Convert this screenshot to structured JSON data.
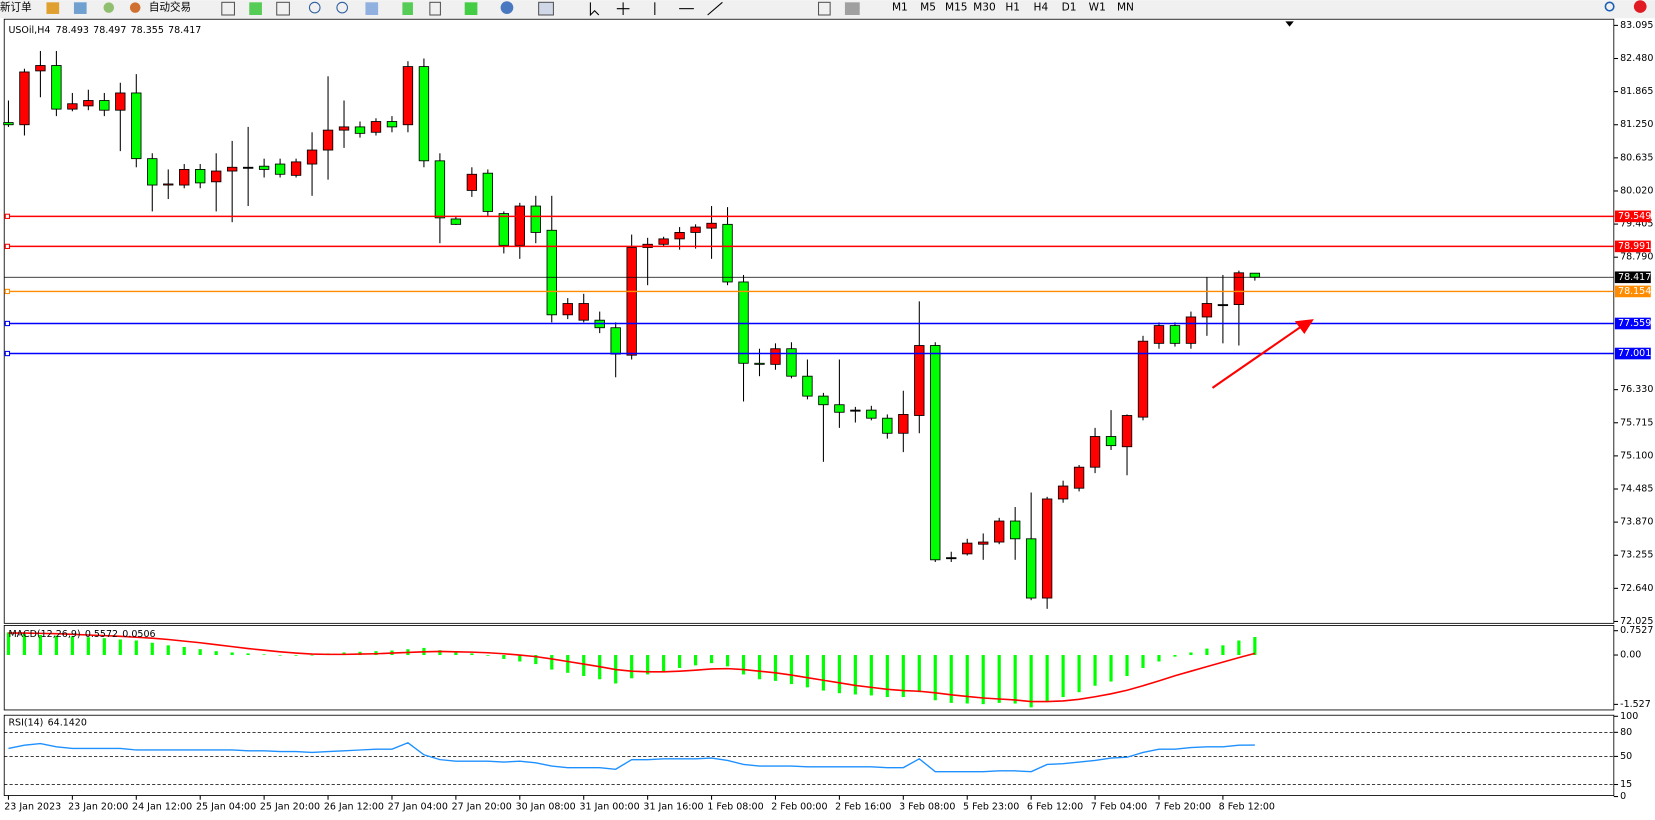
{
  "toolbar": {
    "new_order": "新订单",
    "auto_trading": "自动交易",
    "timeframes": [
      "M1",
      "M5",
      "M15",
      "M30",
      "H1",
      "H4",
      "D1",
      "W1",
      "MN"
    ]
  },
  "chart_data": [
    {
      "type": "candlestick",
      "title": "USOil,H4",
      "categories": [
        "23 Jan 2023",
        null,
        null,
        null,
        "23 Jan 20:00",
        null,
        null,
        null,
        "24 Jan 12:00",
        null,
        null,
        null,
        "25 Jan 04:00",
        null,
        null,
        null,
        "25 Jan 20:00",
        null,
        null,
        null,
        "26 Jan 12:00",
        null,
        null,
        null,
        "27 Jan 04:00",
        null,
        null,
        null,
        "27 Jan 20:00",
        null,
        null,
        null,
        "30 Jan 08:00",
        null,
        null,
        null,
        "31 Jan 00:00",
        null,
        null,
        null,
        "31 Jan 16:00",
        null,
        null,
        null,
        "1 Feb 08:00",
        null,
        null,
        null,
        "2 Feb 00:00",
        null,
        null,
        null,
        "2 Feb 16:00",
        null,
        null,
        null,
        "3 Feb 08:00",
        null,
        null,
        null,
        "5 Feb 23:00",
        null,
        null,
        null,
        "6 Feb 12:00",
        null,
        null,
        null,
        "7 Feb 04:00",
        null,
        null,
        null,
        "7 Feb 20:00",
        null,
        null,
        null,
        "8 Feb 12:00",
        null,
        null
      ],
      "open": [
        81.29,
        81.25,
        82.25,
        82.35,
        81.54,
        81.6,
        81.7,
        81.52,
        81.84,
        80.62,
        80.13,
        80.13,
        80.42,
        80.19,
        80.39,
        80.46,
        80.48,
        80.52,
        80.31,
        80.52,
        80.78,
        81.15,
        81.21,
        81.11,
        81.31,
        81.25,
        82.33,
        80.58,
        79.5,
        80.03,
        80.35,
        79.6,
        79.01,
        79.74,
        79.29,
        77.72,
        77.62,
        77.62,
        77.48,
        76.97,
        78.97,
        79.03,
        79.13,
        79.25,
        79.33,
        79.4,
        78.33,
        76.82,
        76.8,
        77.09,
        76.58,
        76.21,
        76.05,
        75.95,
        75.95,
        75.8,
        75.52,
        75.85,
        77.15,
        73.21,
        73.28,
        73.46,
        73.5,
        73.89,
        73.56,
        72.46,
        74.3,
        74.5,
        74.89,
        75.46,
        75.27,
        75.82,
        77.19,
        77.52,
        77.19,
        77.68,
        77.91,
        77.91,
        78.493
      ],
      "high": [
        81.7,
        82.29,
        82.62,
        82.62,
        81.84,
        81.9,
        81.84,
        82.03,
        82.19,
        80.72,
        80.42,
        80.52,
        80.52,
        80.72,
        80.95,
        81.21,
        80.62,
        80.62,
        80.62,
        81.11,
        82.15,
        81.7,
        81.31,
        81.37,
        81.41,
        82.43,
        82.48,
        80.72,
        79.54,
        80.46,
        80.42,
        79.64,
        79.8,
        79.93,
        79.93,
        78.03,
        78.11,
        77.78,
        77.58,
        79.21,
        79.15,
        79.17,
        79.35,
        79.4,
        79.74,
        79.72,
        78.46,
        77.09,
        77.19,
        77.21,
        76.89,
        76.27,
        76.89,
        76.01,
        76.03,
        75.87,
        76.31,
        77.97,
        77.21,
        73.32,
        73.56,
        73.66,
        73.95,
        74.15,
        74.42,
        74.34,
        74.64,
        74.93,
        75.62,
        75.95,
        75.87,
        77.33,
        77.58,
        77.58,
        77.78,
        78.42,
        78.46,
        78.54,
        78.497
      ],
      "low": [
        81.21,
        81.05,
        81.76,
        81.41,
        81.5,
        81.52,
        81.41,
        80.76,
        80.46,
        79.64,
        79.87,
        80.07,
        80.07,
        79.64,
        79.44,
        79.74,
        80.27,
        80.27,
        80.27,
        79.93,
        80.23,
        80.82,
        81.01,
        81.05,
        81.11,
        81.11,
        80.46,
        79.05,
        79.39,
        79.91,
        79.56,
        78.86,
        78.76,
        79.05,
        77.58,
        77.64,
        77.58,
        77.38,
        76.56,
        76.89,
        78.27,
        78.99,
        78.93,
        78.95,
        78.76,
        78.27,
        76.11,
        76.58,
        76.7,
        76.54,
        76.15,
        74.99,
        75.62,
        75.72,
        75.76,
        75.42,
        75.17,
        75.52,
        73.13,
        73.13,
        73.25,
        73.17,
        73.46,
        73.17,
        72.42,
        72.26,
        74.23,
        74.44,
        74.78,
        75.21,
        74.74,
        75.76,
        77.09,
        77.13,
        77.09,
        77.33,
        77.19,
        77.15,
        78.355
      ],
      "close": [
        81.25,
        82.23,
        82.35,
        81.54,
        81.64,
        81.7,
        81.52,
        81.84,
        80.62,
        80.13,
        80.15,
        80.42,
        80.17,
        80.39,
        80.46,
        80.46,
        80.42,
        80.33,
        80.56,
        80.78,
        81.15,
        81.21,
        81.09,
        81.31,
        81.21,
        82.33,
        80.58,
        79.52,
        79.4,
        80.33,
        79.64,
        79.01,
        79.74,
        79.25,
        77.72,
        77.93,
        77.93,
        77.48,
        76.99,
        78.97,
        79.03,
        79.13,
        79.25,
        79.35,
        79.42,
        78.33,
        76.82,
        76.8,
        77.09,
        76.58,
        76.21,
        76.05,
        75.91,
        75.95,
        75.8,
        75.52,
        75.87,
        77.15,
        73.17,
        73.21,
        73.48,
        73.5,
        73.89,
        73.56,
        72.46,
        74.3,
        74.54,
        74.89,
        75.46,
        75.29,
        75.85,
        77.23,
        77.52,
        77.19,
        77.68,
        77.93,
        77.91,
        78.5,
        78.417
      ],
      "up_color": "#ff0000",
      "down_color": "#00ff00",
      "price_line_color": "#000000",
      "ylim": [
        71.99,
        83.19
      ],
      "yticks": [
        83.095,
        {
          "value": 82.48,
          "label": "82.480"
        },
        81.865,
        {
          "value": 81.25,
          "label": "81.250"
        },
        80.635,
        {
          "value": 80.02,
          "label": "80.020"
        },
        79.405,
        {
          "value": 78.79,
          "label": "78.790"
        },
        {
          "value": 76.33,
          "label": "76.330"
        },
        75.715,
        {
          "value": 75.1,
          "label": "75.100"
        },
        74.485,
        {
          "value": 73.87,
          "label": "73.870"
        },
        73.255,
        {
          "value": 72.64,
          "label": "72.640"
        },
        72.025
      ],
      "levels": [
        {
          "value": 79.549,
          "color": "#ff0000"
        },
        {
          "value": 78.991,
          "color": "#ff0000"
        },
        {
          "value": 78.154,
          "color": "#ff8c00"
        },
        {
          "value": 77.559,
          "color": "#0000ff"
        },
        {
          "value": 77.001,
          "color": "#0000ff"
        }
      ]
    },
    {
      "type": "macd",
      "title": "MACD(12,26,9)",
      "series": [
        {
          "type": "bar",
          "color": "#00ff00",
          "values": [
            0.7,
            0.65,
            0.62,
            0.6,
            0.58,
            0.55,
            0.52,
            0.48,
            0.45,
            0.38,
            0.3,
            0.25,
            0.18,
            0.12,
            0.08,
            0.05,
            0.02,
            0.0,
            -0.02,
            0.0,
            0.05,
            0.08,
            0.1,
            0.12,
            0.14,
            0.18,
            0.22,
            0.15,
            0.08,
            0.05,
            -0.02,
            -0.12,
            -0.2,
            -0.28,
            -0.45,
            -0.55,
            -0.65,
            -0.75,
            -0.88,
            -0.72,
            -0.6,
            -0.5,
            -0.4,
            -0.32,
            -0.25,
            -0.35,
            -0.6,
            -0.75,
            -0.8,
            -0.9,
            -1.0,
            -1.1,
            -1.18,
            -1.22,
            -1.25,
            -1.3,
            -1.3,
            -1.15,
            -1.4,
            -1.48,
            -1.5,
            -1.52,
            -1.48,
            -1.5,
            -1.62,
            -1.45,
            -1.3,
            -1.15,
            -0.95,
            -0.82,
            -0.65,
            -0.4,
            -0.2,
            -0.05,
            0.08,
            0.2,
            0.3,
            0.45,
            0.5572
          ]
        },
        {
          "type": "line",
          "color": "#ff0000",
          "values": [
            0.68,
            0.68,
            0.67,
            0.66,
            0.64,
            0.62,
            0.6,
            0.58,
            0.55,
            0.52,
            0.48,
            0.43,
            0.38,
            0.32,
            0.26,
            0.2,
            0.15,
            0.1,
            0.06,
            0.03,
            0.02,
            0.02,
            0.03,
            0.04,
            0.06,
            0.08,
            0.1,
            0.11,
            0.1,
            0.09,
            0.07,
            0.04,
            0.0,
            -0.05,
            -0.12,
            -0.2,
            -0.28,
            -0.36,
            -0.45,
            -0.5,
            -0.52,
            -0.52,
            -0.5,
            -0.47,
            -0.43,
            -0.42,
            -0.45,
            -0.5,
            -0.55,
            -0.62,
            -0.7,
            -0.78,
            -0.86,
            -0.94,
            -1.0,
            -1.06,
            -1.1,
            -1.12,
            -1.17,
            -1.23,
            -1.28,
            -1.33,
            -1.36,
            -1.39,
            -1.44,
            -1.44,
            -1.42,
            -1.37,
            -1.29,
            -1.2,
            -1.09,
            -0.95,
            -0.8,
            -0.64,
            -0.5,
            -0.36,
            -0.22,
            -0.08,
            0.0506
          ]
        }
      ],
      "ylim": [
        -1.699,
        0.915
      ],
      "yticks": [
        0.7527,
        {
          "value": 0,
          "label": "0.00"
        },
        -1.527
      ]
    },
    {
      "type": "line",
      "title": "RSI(14)",
      "color": "#1e90ff",
      "values": [
        60,
        64,
        66,
        62,
        60,
        60,
        60,
        60,
        58,
        58,
        58,
        58,
        58,
        58,
        58,
        57,
        57,
        56,
        56,
        55,
        56,
        57,
        58,
        59,
        59,
        67,
        52,
        46,
        44,
        44,
        44,
        43,
        44,
        42,
        38,
        36,
        36,
        36,
        34,
        46,
        46,
        47,
        47,
        47,
        48,
        45,
        40,
        38,
        38,
        38,
        37,
        37,
        37,
        37,
        37,
        36,
        36,
        47,
        31,
        31,
        31,
        31,
        32,
        32,
        31,
        40,
        41,
        43,
        45,
        48,
        49,
        55,
        59,
        59,
        61,
        62,
        62,
        64,
        64.142
      ],
      "value_labels": [
        null,
        null,
        null,
        null,
        null,
        null,
        null,
        null,
        null,
        null,
        null,
        null,
        null,
        null,
        null,
        null,
        null,
        null,
        null,
        null,
        null,
        null,
        null,
        null,
        null,
        null,
        null,
        null,
        null,
        null,
        null,
        null,
        null,
        null,
        null,
        null,
        null,
        null,
        null,
        null,
        null,
        null,
        null,
        null,
        null,
        null,
        null,
        null,
        null,
        null,
        null,
        null,
        null,
        null,
        null,
        null,
        null,
        null,
        null,
        null,
        null,
        null,
        null,
        null,
        null,
        null,
        null,
        null,
        null,
        null,
        null,
        null,
        null,
        null,
        null,
        null,
        null,
        null,
        "64.1420"
      ],
      "ylim": [
        0,
        100
      ],
      "yticks": [
        100,
        80,
        50,
        15,
        0
      ],
      "levels": [
        80,
        50,
        15
      ]
    }
  ]
}
